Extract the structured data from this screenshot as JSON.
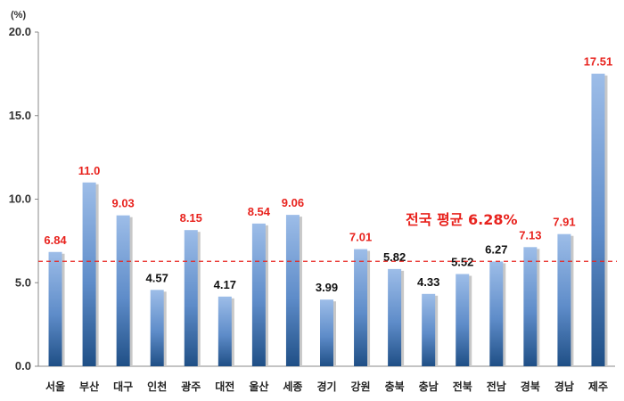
{
  "chart_data": {
    "type": "bar",
    "unit_label": "(%)",
    "categories": [
      "서울",
      "부산",
      "대구",
      "인천",
      "광주",
      "대전",
      "울산",
      "세종",
      "경기",
      "강원",
      "충북",
      "충남",
      "전북",
      "전남",
      "경북",
      "경남",
      "제주"
    ],
    "values": [
      6.84,
      11.0,
      9.03,
      4.57,
      8.15,
      4.17,
      8.54,
      9.06,
      3.99,
      7.01,
      5.82,
      4.33,
      5.52,
      6.27,
      7.13,
      7.91,
      17.51
    ],
    "data_labels": [
      "6.84",
      "11.0",
      "9.03",
      "4.57",
      "8.15",
      "4.17",
      "8.54",
      "9.06",
      "3.99",
      "7.01",
      "5.82",
      "4.33",
      "5.52",
      "6.27",
      "7.13",
      "7.91",
      "17.51"
    ],
    "yticks": [
      "0.0",
      "5.0",
      "10.0",
      "15.0",
      "20.0"
    ],
    "ylim": [
      0,
      20
    ],
    "reference_line": {
      "value": 6.28,
      "label": "전국 평균 6.28%",
      "color": "#e8231e",
      "style": "dashed"
    },
    "colors": {
      "above_avg_label": "#e8231e",
      "below_avg_label": "#111111",
      "bar_light": "#8fb3e3",
      "bar_dark": "#1f4f86"
    },
    "grid": false,
    "legend": "none"
  }
}
